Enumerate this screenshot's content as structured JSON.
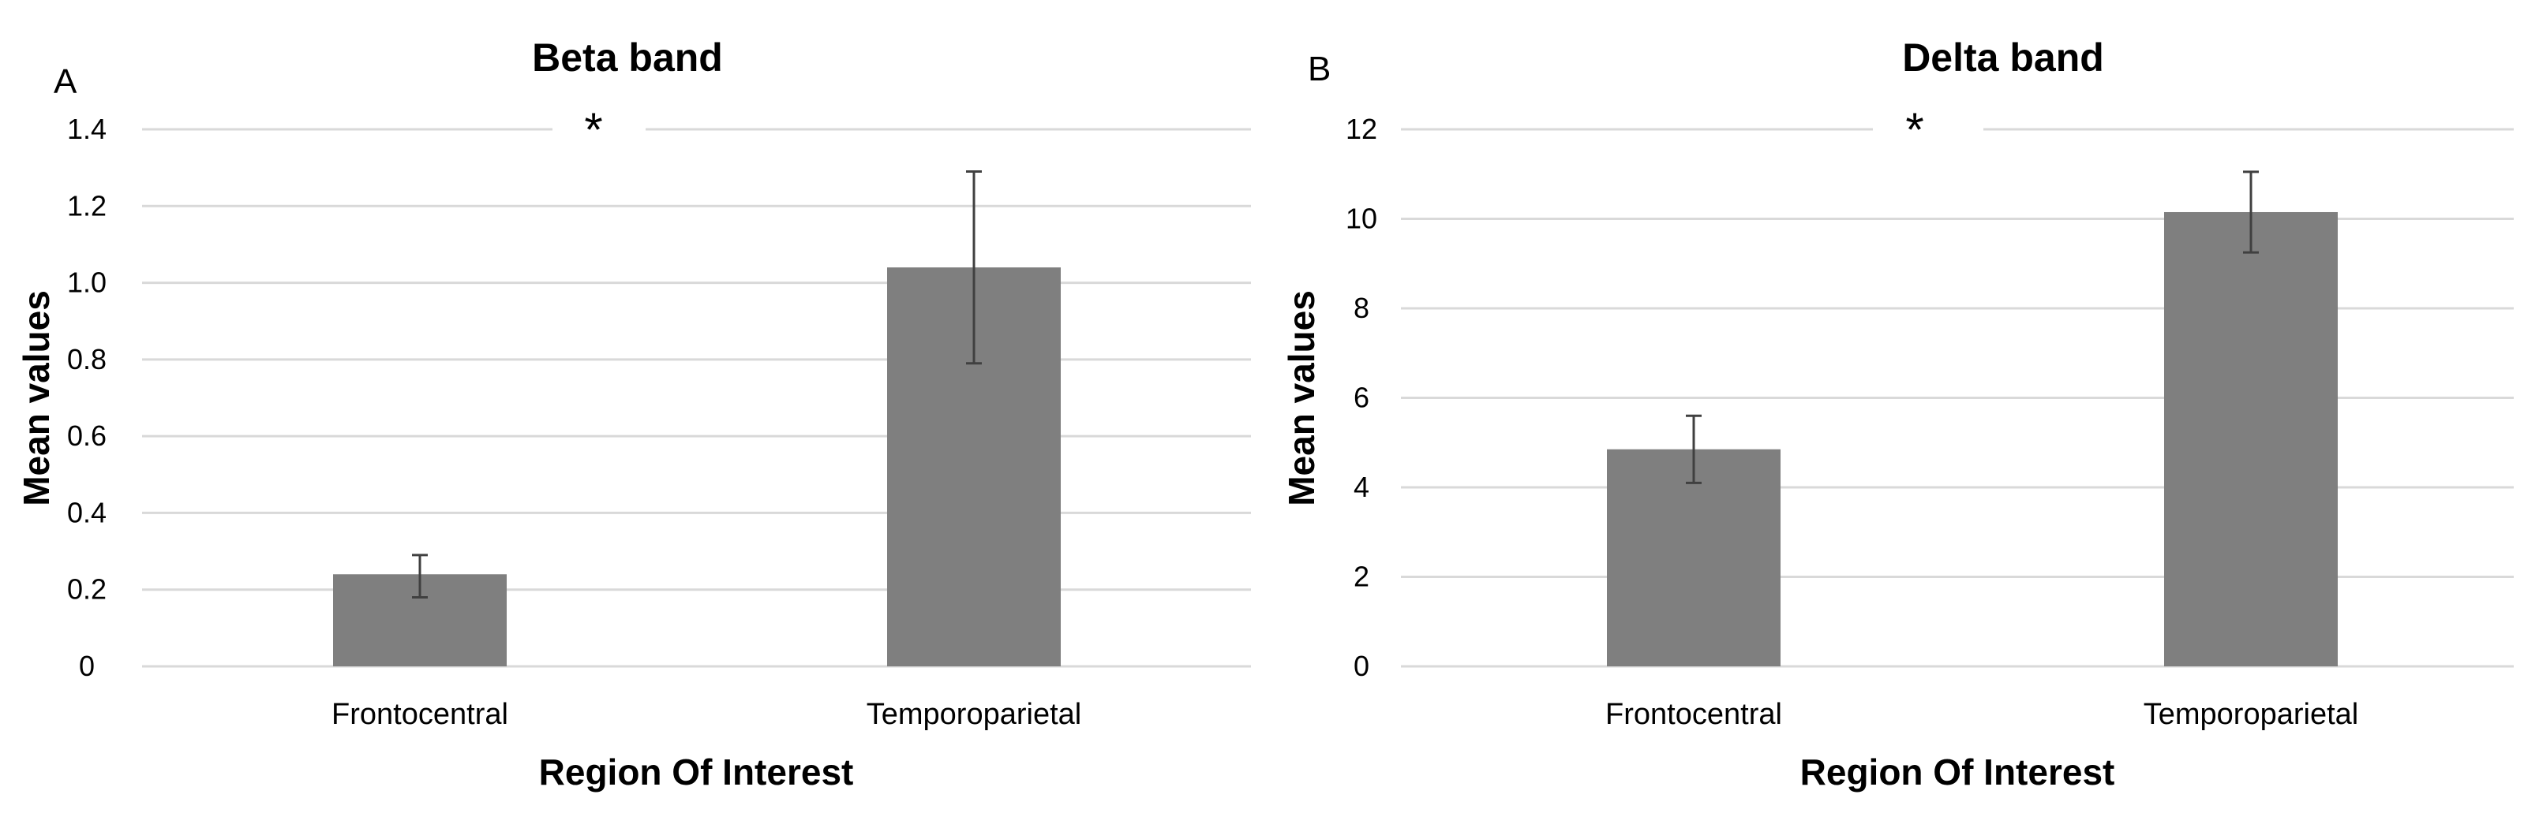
{
  "figure": {
    "panels": [
      {
        "letter": "A",
        "significance_marker": "*"
      },
      {
        "letter": "B",
        "significance_marker": "*"
      }
    ]
  },
  "chart_data": [
    {
      "type": "bar",
      "title": "Beta band",
      "xlabel": "Region Of Interest",
      "ylabel": "Mean values",
      "categories": [
        "Frontocentral",
        "Temporoparietal"
      ],
      "values": [
        0.24,
        1.04
      ],
      "error_low": [
        0.18,
        0.79
      ],
      "error_high": [
        0.29,
        1.29
      ],
      "ylim": [
        0,
        1.4
      ],
      "yticks": [
        "0",
        "0.2",
        "0.4",
        "0.6",
        "0.8",
        "1.0",
        "1.2",
        "1.4"
      ],
      "grid": true,
      "bar_color": "#7f7f7f",
      "grid_color": "#d9d9d9",
      "error_bar_color": "#404040"
    },
    {
      "type": "bar",
      "title": "Delta band",
      "xlabel": "Region Of Interest",
      "ylabel": "Mean values",
      "categories": [
        "Frontocentral",
        "Temporoparietal"
      ],
      "values": [
        4.85,
        10.15
      ],
      "error_low": [
        4.1,
        9.25
      ],
      "error_high": [
        5.6,
        11.05
      ],
      "ylim": [
        0,
        12
      ],
      "yticks": [
        "0",
        "2",
        "4",
        "6",
        "8",
        "10",
        "12"
      ],
      "grid": true,
      "bar_color": "#7f7f7f",
      "grid_color": "#d9d9d9",
      "error_bar_color": "#404040"
    }
  ]
}
